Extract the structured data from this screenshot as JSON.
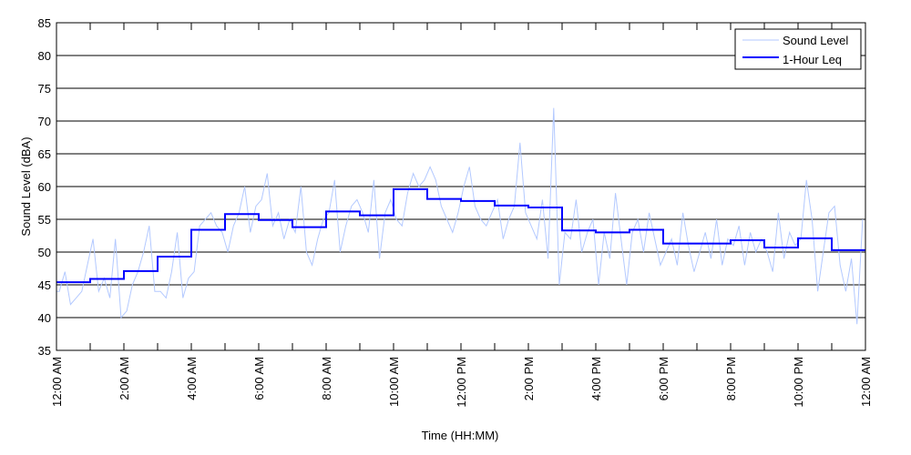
{
  "chart_data": {
    "type": "line",
    "title": "",
    "xlabel": "Time (HH:MM)",
    "ylabel": "Sound Level (dBA)",
    "ylim": [
      35,
      85
    ],
    "yticks": [
      35,
      40,
      45,
      50,
      55,
      60,
      65,
      70,
      75,
      80,
      85
    ],
    "xlim_hours": [
      0,
      24
    ],
    "xtick_labels": [
      "12:00 AM",
      "2:00 AM",
      "4:00 AM",
      "6:00 AM",
      "8:00 AM",
      "10:00 AM",
      "12:00 PM",
      "2:00 PM",
      "4:00 PM",
      "6:00 PM",
      "8:00 PM",
      "10:00 PM",
      "12:00 AM"
    ],
    "grid": "horizontal",
    "legend_position": "top-right",
    "series": [
      {
        "name": "Sound Level",
        "color": "#b3c9ff",
        "sample_interval_minutes": 10,
        "values": [
          44,
          47,
          42,
          43,
          44,
          48,
          52,
          44,
          46,
          43,
          52,
          40,
          41,
          45,
          47,
          50,
          54,
          44,
          44,
          43,
          47,
          53,
          43,
          46,
          47,
          54,
          55,
          56,
          54,
          53,
          50,
          54,
          56,
          60,
          53,
          57,
          58,
          62,
          54,
          56,
          52,
          55,
          53,
          60,
          50,
          48,
          52,
          55,
          56,
          61,
          50,
          54,
          57,
          58,
          56,
          53,
          61,
          49,
          56,
          58,
          55,
          54,
          59,
          62,
          60,
          61,
          63,
          61,
          57,
          55,
          53,
          56,
          60,
          63,
          57,
          55,
          54,
          56,
          58,
          52,
          55,
          57,
          66.7,
          56,
          54,
          52,
          58,
          49,
          72,
          45,
          53,
          52,
          58,
          50,
          53,
          55,
          45,
          53,
          49,
          59,
          52,
          45,
          53,
          55,
          50,
          56,
          52,
          48,
          50,
          52,
          48,
          56,
          51,
          47,
          50,
          53,
          49,
          55,
          48,
          52,
          51,
          54,
          48,
          53,
          50,
          52,
          50,
          47,
          56,
          49,
          53,
          51,
          52,
          61,
          55,
          44,
          50,
          56,
          57,
          48,
          44,
          49,
          39,
          55
        ]
      },
      {
        "name": "1-Hour Leq",
        "color": "#0000ff",
        "type": "step",
        "hours": [
          0,
          1,
          2,
          3,
          4,
          5,
          6,
          7,
          8,
          9,
          10,
          11,
          12,
          13,
          14,
          15,
          16,
          17,
          18,
          19,
          20,
          21,
          22,
          23
        ],
        "values": [
          45.4,
          45.9,
          47.1,
          49.3,
          53.4,
          55.8,
          54.9,
          53.8,
          56.2,
          55.6,
          59.6,
          58.1,
          57.8,
          57.1,
          56.8,
          53.3,
          53.0,
          53.4,
          51.3,
          51.3,
          51.8,
          50.7,
          52.1,
          50.3
        ]
      }
    ]
  }
}
